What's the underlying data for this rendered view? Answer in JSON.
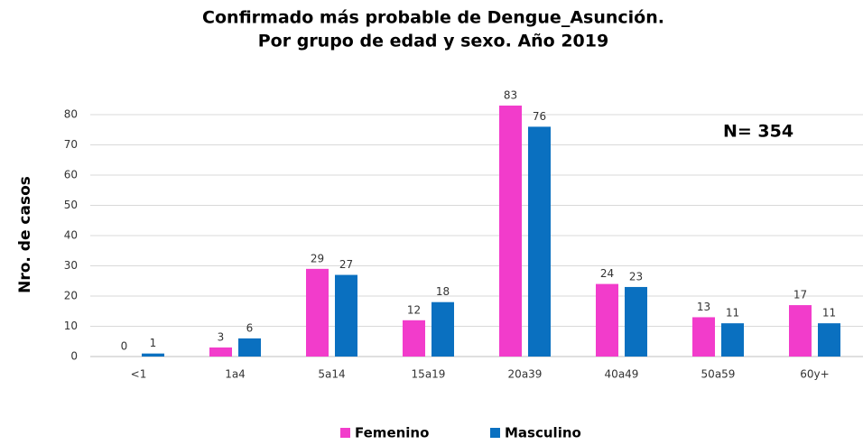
{
  "chart_data": {
    "type": "bar",
    "title": "Confirmado más probable de Dengue_Asunción.",
    "subtitle": "Por grupo de edad y sexo. Año 2019",
    "y_label": "Nro. de casos",
    "annotation": "N= 354",
    "categories": [
      "<1",
      "1a4",
      "5a14",
      "15a19",
      "20a39",
      "40a49",
      "50a59",
      "60y+"
    ],
    "series": [
      {
        "name": "Femenino",
        "color": "#f23ccb",
        "values": [
          0,
          3,
          29,
          12,
          83,
          24,
          13,
          17
        ]
      },
      {
        "name": "Masculino",
        "color": "#0a70c0",
        "values": [
          1,
          6,
          27,
          18,
          76,
          23,
          11,
          11
        ]
      }
    ],
    "ylim": [
      0,
      90
    ],
    "yticks": [
      0,
      10,
      20,
      30,
      40,
      50,
      60,
      70,
      80
    ],
    "grid": true,
    "legend": "bottom"
  }
}
